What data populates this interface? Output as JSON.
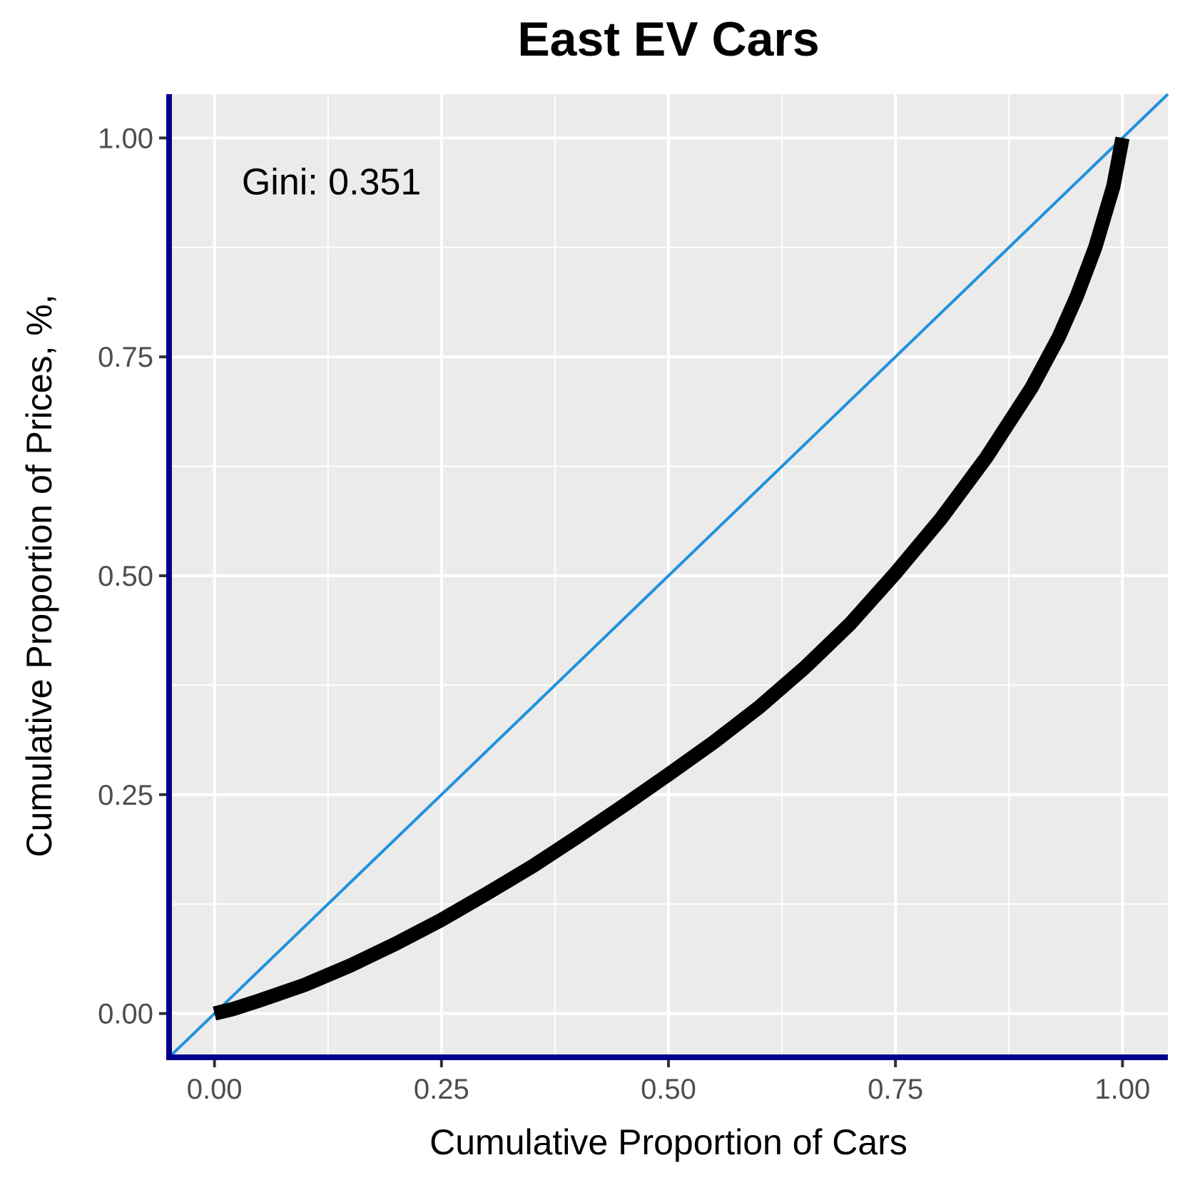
{
  "chart_data": {
    "type": "line",
    "title": "East EV Cars",
    "xlabel": "Cumulative Proportion of Cars",
    "ylabel": "Cumulative Proportion of Prices, %,",
    "xlim": [
      -0.05,
      1.05
    ],
    "ylim": [
      -0.05,
      1.05
    ],
    "x_ticks": [
      0.0,
      0.25,
      0.5,
      0.75,
      1.0
    ],
    "x_tick_labels": [
      "0.00",
      "0.25",
      "0.50",
      "0.75",
      "1.00"
    ],
    "y_ticks": [
      0.0,
      0.25,
      0.5,
      0.75,
      1.0
    ],
    "y_tick_labels": [
      "0.00",
      "0.25",
      "0.50",
      "0.75",
      "1.00"
    ],
    "grid": true,
    "annotation": {
      "text": "Gini: 0.351",
      "x": 0.03,
      "y": 0.95
    },
    "series": [
      {
        "role": "lorenz-curve",
        "color": "#000000",
        "x": [
          0.0,
          0.02,
          0.05,
          0.1,
          0.15,
          0.2,
          0.25,
          0.3,
          0.35,
          0.4,
          0.45,
          0.5,
          0.55,
          0.6,
          0.65,
          0.7,
          0.75,
          0.8,
          0.85,
          0.9,
          0.93,
          0.95,
          0.97,
          0.99,
          1.0
        ],
        "y": [
          0.0,
          0.005,
          0.015,
          0.033,
          0.055,
          0.08,
          0.107,
          0.137,
          0.168,
          0.202,
          0.237,
          0.273,
          0.31,
          0.35,
          0.395,
          0.445,
          0.503,
          0.565,
          0.635,
          0.715,
          0.773,
          0.82,
          0.875,
          0.945,
          1.0
        ]
      },
      {
        "role": "equality-line",
        "color": "#1f92dc",
        "x": [
          -0.05,
          1.05
        ],
        "y": [
          -0.05,
          1.05
        ]
      }
    ],
    "colors": {
      "panel_background": "#ebebeb",
      "grid": "#ffffff",
      "axis_line": "#00008b",
      "curve": "#000000",
      "equality_line": "#1f92dc"
    }
  }
}
